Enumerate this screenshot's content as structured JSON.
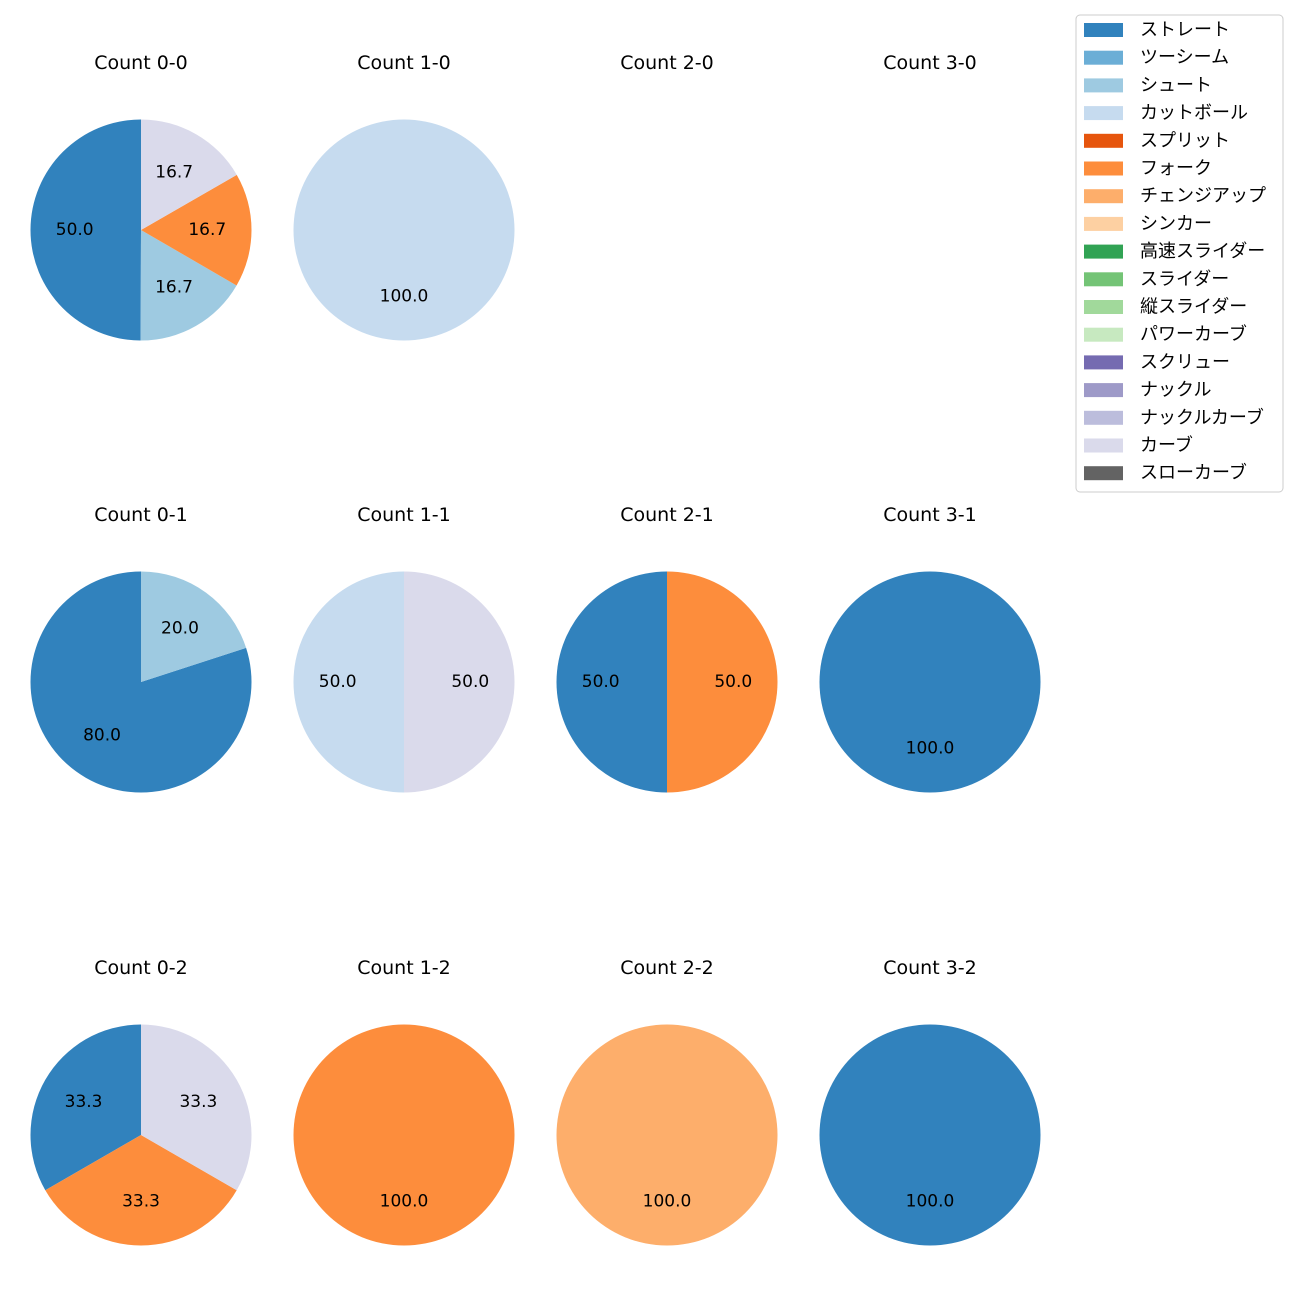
{
  "legend": {
    "entries": [
      {
        "label": "ストレート",
        "color": "#3182bd"
      },
      {
        "label": "ツーシーム",
        "color": "#6baed6"
      },
      {
        "label": "シュート",
        "color": "#9ecae1"
      },
      {
        "label": "カットボール",
        "color": "#c6dbef"
      },
      {
        "label": "スプリット",
        "color": "#e6550d"
      },
      {
        "label": "フォーク",
        "color": "#fd8d3c"
      },
      {
        "label": "チェンジアップ",
        "color": "#fdae6b"
      },
      {
        "label": "シンカー",
        "color": "#fdd0a2"
      },
      {
        "label": "高速スライダー",
        "color": "#31a354"
      },
      {
        "label": "スライダー",
        "color": "#74c476"
      },
      {
        "label": "縦スライダー",
        "color": "#a1d99b"
      },
      {
        "label": "パワーカーブ",
        "color": "#c7e9c0"
      },
      {
        "label": "スクリュー",
        "color": "#756bb1"
      },
      {
        "label": "ナックル",
        "color": "#9e9ac8"
      },
      {
        "label": "ナックルカーブ",
        "color": "#bcbddc"
      },
      {
        "label": "カーブ",
        "color": "#dadaeb"
      },
      {
        "label": "スローカーブ",
        "color": "#636363"
      }
    ]
  },
  "chart_data": [
    {
      "type": "pie",
      "title": "Count 0-0",
      "slices": [
        {
          "category": "ストレート",
          "value": 50.0
        },
        {
          "category": "シュート",
          "value": 16.7
        },
        {
          "category": "フォーク",
          "value": 16.7
        },
        {
          "category": "カーブ",
          "value": 16.7
        }
      ]
    },
    {
      "type": "pie",
      "title": "Count 1-0",
      "slices": [
        {
          "category": "カットボール",
          "value": 100.0
        }
      ]
    },
    {
      "type": "pie",
      "title": "Count 2-0",
      "slices": []
    },
    {
      "type": "pie",
      "title": "Count 3-0",
      "slices": []
    },
    {
      "type": "pie",
      "title": "Count 0-1",
      "slices": [
        {
          "category": "ストレート",
          "value": 80.0
        },
        {
          "category": "シュート",
          "value": 20.0
        }
      ]
    },
    {
      "type": "pie",
      "title": "Count 1-1",
      "slices": [
        {
          "category": "カットボール",
          "value": 50.0
        },
        {
          "category": "カーブ",
          "value": 50.0
        }
      ]
    },
    {
      "type": "pie",
      "title": "Count 2-1",
      "slices": [
        {
          "category": "ストレート",
          "value": 50.0
        },
        {
          "category": "フォーク",
          "value": 50.0
        }
      ]
    },
    {
      "type": "pie",
      "title": "Count 3-1",
      "slices": [
        {
          "category": "ストレート",
          "value": 100.0
        }
      ]
    },
    {
      "type": "pie",
      "title": "Count 0-2",
      "slices": [
        {
          "category": "ストレート",
          "value": 33.3
        },
        {
          "category": "フォーク",
          "value": 33.3
        },
        {
          "category": "カーブ",
          "value": 33.3
        }
      ]
    },
    {
      "type": "pie",
      "title": "Count 1-2",
      "slices": [
        {
          "category": "フォーク",
          "value": 100.0
        }
      ]
    },
    {
      "type": "pie",
      "title": "Count 2-2",
      "slices": [
        {
          "category": "チェンジアップ",
          "value": 100.0
        }
      ]
    },
    {
      "type": "pie",
      "title": "Count 3-2",
      "slices": [
        {
          "category": "ストレート",
          "value": 100.0
        }
      ]
    }
  ]
}
